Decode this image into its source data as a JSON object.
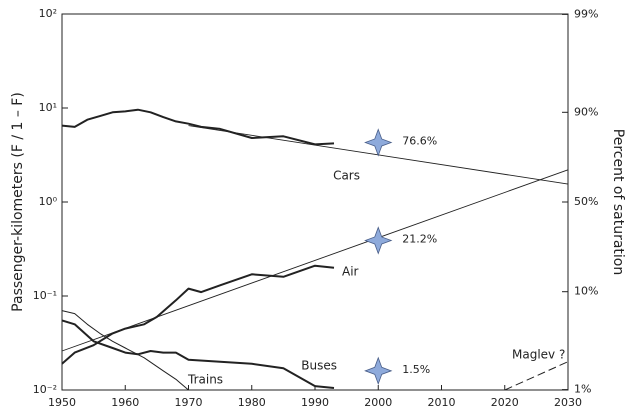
{
  "chart_data": {
    "type": "line",
    "y_label": "Passenger-kilometers (F / 1 – F)",
    "y2_label": "Percent of saturation",
    "xlim": [
      1950,
      2030
    ],
    "xticks": [
      1950,
      1960,
      1970,
      1980,
      1990,
      2000,
      2010,
      2020,
      2030
    ],
    "ylim": [
      0.01,
      100
    ],
    "yscale": "log",
    "yticks": [
      {
        "value": 0.01,
        "label": "10⁻²"
      },
      {
        "value": 0.1,
        "label": "10⁻¹"
      },
      {
        "value": 1,
        "label": "10⁰"
      },
      {
        "value": 10,
        "label": "10¹"
      },
      {
        "value": 100,
        "label": "10²"
      }
    ],
    "y2scale": "logit-percent",
    "y2ticks": [
      {
        "value": 1,
        "label": "1%"
      },
      {
        "value": 10,
        "label": "10%"
      },
      {
        "value": 50,
        "label": "50%"
      },
      {
        "value": 90,
        "label": "90%"
      },
      {
        "value": 99,
        "label": "99%"
      }
    ],
    "series": [
      {
        "name": "Cars",
        "color": "#222",
        "width": 2,
        "x": [
          1950,
          1952,
          1954,
          1956,
          1958,
          1960,
          1962,
          1964,
          1966,
          1968,
          1970,
          1972,
          1975,
          1980,
          1985,
          1990,
          1993
        ],
        "values": [
          6.5,
          6.3,
          7.5,
          8.2,
          9,
          9.2,
          9.6,
          9,
          8,
          7.2,
          6.8,
          6.3,
          6,
          4.8,
          5,
          4.1,
          4.2
        ]
      },
      {
        "name": "Air",
        "color": "#222",
        "width": 2,
        "x": [
          1950,
          1952,
          1955,
          1958,
          1960,
          1963,
          1965,
          1968,
          1970,
          1972,
          1975,
          1980,
          1985,
          1990,
          1993
        ],
        "values": [
          0.019,
          0.025,
          0.03,
          0.04,
          0.045,
          0.05,
          0.06,
          0.09,
          0.12,
          0.11,
          0.13,
          0.17,
          0.16,
          0.21,
          0.2
        ]
      },
      {
        "name": "Buses",
        "color": "#222",
        "width": 2,
        "x": [
          1950,
          1952,
          1955,
          1958,
          1960,
          1962,
          1964,
          1966,
          1968,
          1970,
          1975,
          1980,
          1985,
          1990,
          1993
        ],
        "values": [
          0.055,
          0.05,
          0.033,
          0.028,
          0.025,
          0.024,
          0.026,
          0.025,
          0.025,
          0.021,
          0.02,
          0.019,
          0.017,
          0.011,
          0.0105
        ]
      },
      {
        "name": "Trains",
        "color": "#222",
        "width": 1,
        "x": [
          1950,
          1952,
          1954,
          1956,
          1958,
          1960,
          1963,
          1966,
          1968,
          1970
        ],
        "values": [
          0.07,
          0.065,
          0.05,
          0.04,
          0.033,
          0.028,
          0.022,
          0.016,
          0.013,
          0.01
        ]
      },
      {
        "name": "Maglev ?",
        "color": "#222",
        "width": 1,
        "dashed": true,
        "x": [
          2020,
          2030
        ],
        "values": [
          0.01,
          0.02
        ]
      }
    ],
    "fits": [
      {
        "color": "#222",
        "x": [
          1970,
          2030
        ],
        "values": [
          6.5,
          1.55
        ]
      },
      {
        "color": "#222",
        "x": [
          1950,
          2030
        ],
        "values": [
          0.026,
          2.2
        ]
      }
    ],
    "markers": [
      {
        "x": 2000,
        "y": 4.3,
        "label": "76.6%"
      },
      {
        "x": 2000,
        "y": 0.39,
        "label": "21.2%"
      },
      {
        "x": 2000,
        "y": 0.016,
        "label": "1.5%"
      }
    ],
    "marker_color": "#8eaadb"
  }
}
